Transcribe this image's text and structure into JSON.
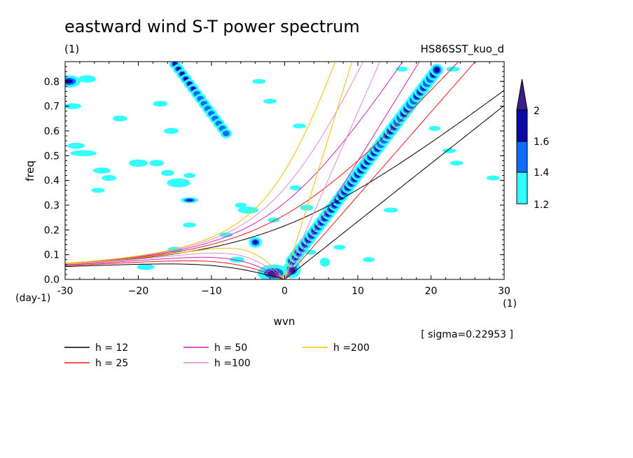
{
  "chart_data": {
    "type": "contour",
    "title": "eastward wind S-T power spectrum",
    "run_label": "HS86SST_kuo_d",
    "y_unit_top": "(1)",
    "x_unit_right": "(1)",
    "y_unit_bottom": "(day-1)",
    "xlabel": "wvn",
    "ylabel": "freq",
    "xlim": [
      -30,
      30
    ],
    "ylim": [
      0,
      0.88
    ],
    "x_ticks": [
      -30,
      -20,
      -10,
      0,
      10,
      20,
      30
    ],
    "x_tick_labels": [
      "-30",
      "−20",
      "−10",
      "0",
      "10",
      "20",
      "30"
    ],
    "y_ticks": [
      0.0,
      0.1,
      0.2,
      0.3,
      0.4,
      0.5,
      0.6,
      0.7,
      0.8
    ],
    "y_tick_labels": [
      "0.0",
      "0.1",
      "0.2",
      "0.3",
      "0.4",
      "0.5",
      "0.6",
      "0.7",
      "0.8"
    ],
    "sigma_label": "[ sigma=0.22953 ]",
    "colorbar": {
      "levels": [
        1.2,
        1.4,
        1.6,
        2
      ],
      "labels": [
        "1.2",
        "1.4",
        "1.6",
        "2"
      ],
      "colors": [
        "#33ffff",
        "#0d6efd",
        "#0a0aa8",
        "#3c1e8a"
      ]
    },
    "dispersion_curves": [
      {
        "h": 12,
        "label": "h = 12",
        "color": "#000000"
      },
      {
        "h": 25,
        "label": "h = 25",
        "color": "#e8191a"
      },
      {
        "h": 50,
        "label": "h = 50",
        "color": "#d61fb4"
      },
      {
        "h": 100,
        "label": "h =100",
        "color": "#dc8bdc"
      },
      {
        "h": 200,
        "label": "h =200",
        "color": "#f0c000"
      }
    ],
    "grid": false
  }
}
